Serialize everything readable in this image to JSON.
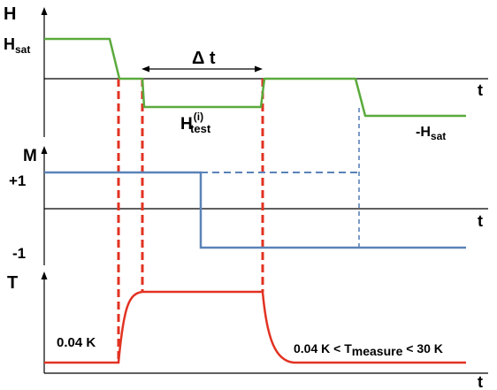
{
  "colors": {
    "field": "#5aaa3c",
    "magnetization": "#5a82b8",
    "temperature": "#e23222",
    "guide": "#e23222",
    "axis": "#000000"
  },
  "panels": {
    "field": {
      "axis_label": "H",
      "time_label": "t",
      "sat_label": {
        "main": "H",
        "sub": "sat"
      },
      "neg_sat_label": {
        "prefix": "-H",
        "sub": "sat"
      },
      "test_label": {
        "main": "H",
        "sup": "(i)",
        "sub": "test"
      },
      "interval_label": "Δ t"
    },
    "magnetization": {
      "axis_label": "M",
      "time_label": "t",
      "plus_label": "+1",
      "minus_label": "-1"
    },
    "temperature": {
      "axis_label": "T",
      "time_label": "t",
      "low_label": "0.04 K",
      "range_label": {
        "left": "0.04 K < T",
        "sub": "measure",
        "right": " < 30 K"
      }
    }
  }
}
